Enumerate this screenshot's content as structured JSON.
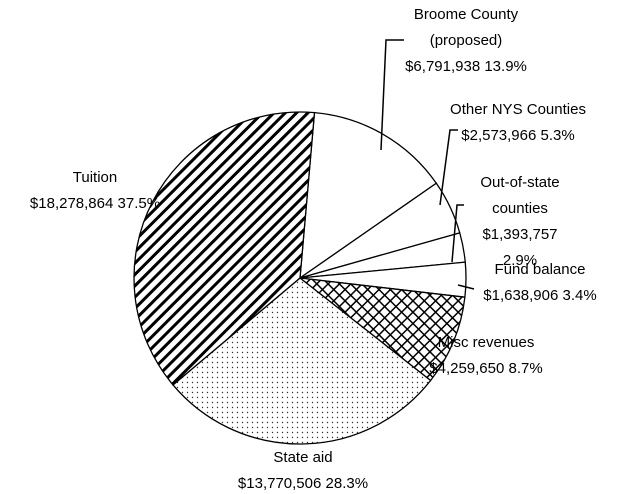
{
  "chart_data": {
    "type": "pie",
    "categories": [
      "Broome County (proposed)",
      "Other NYS Counties",
      "Out-of-state counties",
      "Fund balance",
      "Misc revenues",
      "State aid",
      "Tuition"
    ],
    "values": [
      6791938,
      2573966,
      1393757,
      1638906,
      4259650,
      13770506,
      18278864
    ],
    "value_labels": [
      "$6,791,938",
      "$2,573,966",
      "$1,393,757",
      "$1,638,906",
      "$4,259,650",
      "$13,770,506",
      "$18,278,864"
    ],
    "percent_labels": [
      "13.9%",
      "5.3%",
      "2.9%",
      "3.4%",
      "8.7%",
      "28.3%",
      "37.5%"
    ],
    "fills": [
      "white",
      "white",
      "white",
      "white",
      "crosshatch",
      "dots",
      "stripes"
    ]
  }
}
